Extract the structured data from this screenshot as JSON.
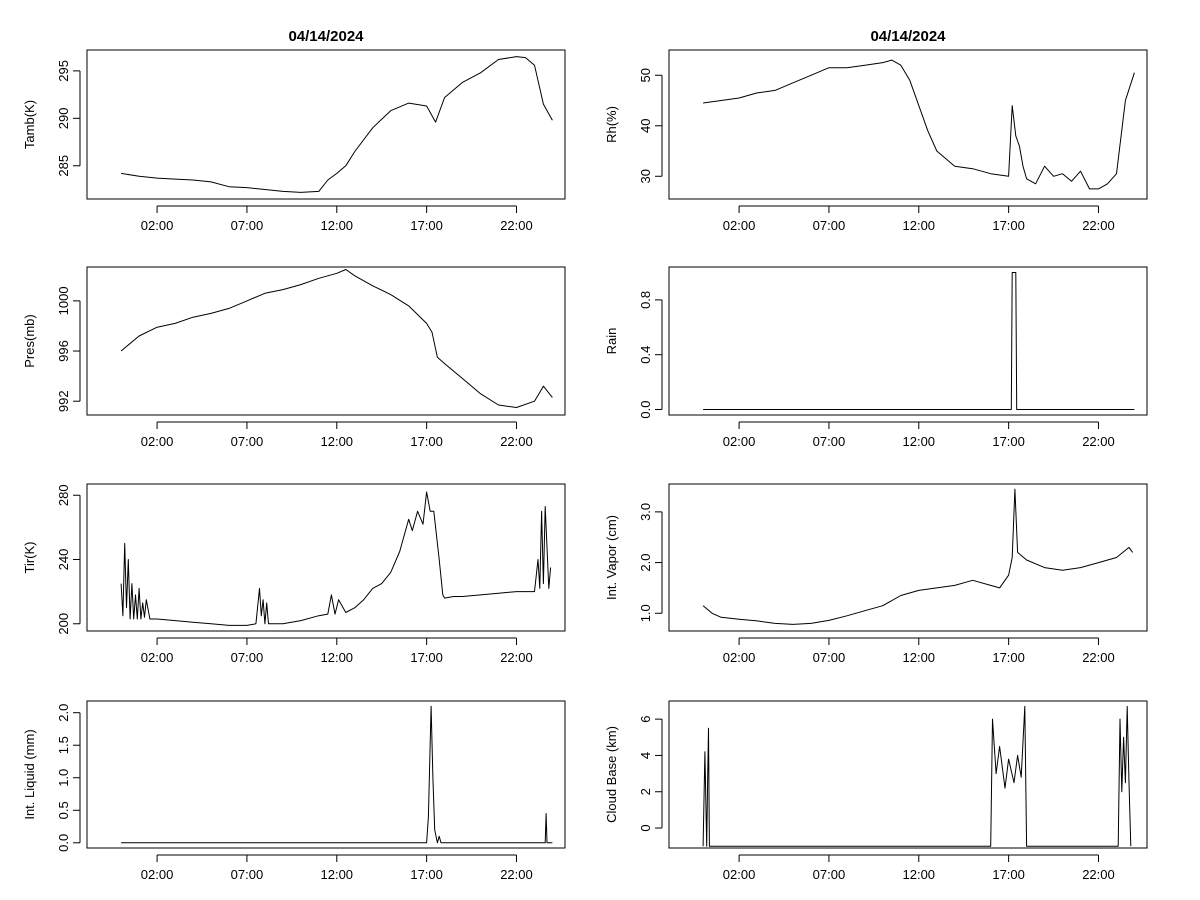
{
  "chart_data": [
    {
      "type": "line",
      "name": "tamb",
      "title": "04/14/2024",
      "xlabel": "",
      "ylabel": "Tamb(K)",
      "xlim": [
        -1.9,
        24.7
      ],
      "ylim": [
        281.5,
        297.2
      ],
      "xticks": [
        2,
        7,
        12,
        17,
        22
      ],
      "xtick_labels": [
        "02:00",
        "07:00",
        "12:00",
        "17:00",
        "22:00"
      ],
      "yticks": [
        285,
        290,
        295
      ],
      "ytick_labels": [
        "285",
        "290",
        "295"
      ],
      "x": [
        0,
        1,
        2,
        3,
        4,
        5,
        6,
        7,
        8,
        9,
        10,
        11,
        11.5,
        12,
        12.5,
        13,
        14,
        15,
        16,
        17,
        17.5,
        18,
        19,
        20,
        21,
        22,
        22.5,
        23,
        23.5,
        24
      ],
      "y": [
        284.2,
        283.9,
        283.7,
        283.6,
        283.5,
        283.3,
        282.8,
        282.7,
        282.5,
        282.3,
        282.2,
        282.3,
        283.5,
        284.2,
        285.0,
        286.5,
        289.0,
        290.8,
        291.6,
        291.3,
        289.6,
        292.2,
        293.8,
        294.8,
        296.2,
        296.5,
        296.4,
        295.6,
        291.5,
        289.8
      ]
    },
    {
      "type": "line",
      "name": "rh",
      "title": "04/14/2024",
      "xlabel": "",
      "ylabel": "Rh(%)",
      "xlim": [
        -1.9,
        24.7
      ],
      "ylim": [
        25.5,
        55
      ],
      "xticks": [
        2,
        7,
        12,
        17,
        22
      ],
      "xtick_labels": [
        "02:00",
        "07:00",
        "12:00",
        "17:00",
        "22:00"
      ],
      "yticks": [
        30,
        40,
        50
      ],
      "ytick_labels": [
        "30",
        "40",
        "50"
      ],
      "x": [
        0,
        1,
        2,
        3,
        4,
        5,
        6,
        7,
        8,
        9,
        10,
        10.5,
        11,
        11.5,
        12,
        12.5,
        13,
        14,
        15,
        16,
        17,
        17.2,
        17.4,
        17.6,
        17.8,
        18,
        18.5,
        19,
        19.5,
        20,
        20.5,
        21,
        21.5,
        22,
        22.5,
        23,
        23.5,
        24
      ],
      "y": [
        44.5,
        45.0,
        45.5,
        46.5,
        47.0,
        48.5,
        50.0,
        51.5,
        51.5,
        52.0,
        52.5,
        53.0,
        52.0,
        49.0,
        44.0,
        39.0,
        35.0,
        32.0,
        31.5,
        30.5,
        30.0,
        44.0,
        38.0,
        36.0,
        32.0,
        29.5,
        28.5,
        32.0,
        30.0,
        30.5,
        29.0,
        31.0,
        27.5,
        27.5,
        28.5,
        30.5,
        45.0,
        50.5
      ]
    },
    {
      "type": "line",
      "name": "pres",
      "title": "",
      "xlabel": "",
      "ylabel": "Pres(mb)",
      "xlim": [
        -1.9,
        24.7
      ],
      "ylim": [
        990.9,
        1002.7
      ],
      "xticks": [
        2,
        7,
        12,
        17,
        22
      ],
      "xtick_labels": [
        "02:00",
        "07:00",
        "12:00",
        "17:00",
        "22:00"
      ],
      "yticks": [
        992,
        996,
        1000
      ],
      "ytick_labels": [
        "992",
        "996",
        "1000"
      ],
      "x": [
        0,
        1,
        2,
        3,
        4,
        5,
        6,
        7,
        8,
        9,
        10,
        11,
        12,
        12.5,
        13,
        14,
        15,
        16,
        17,
        17.3,
        17.6,
        18,
        19,
        20,
        21,
        22,
        23,
        23.5,
        24
      ],
      "y": [
        996.0,
        997.2,
        997.9,
        998.2,
        998.7,
        999.0,
        999.4,
        1000.0,
        1000.6,
        1000.9,
        1001.3,
        1001.8,
        1002.2,
        1002.5,
        1002.0,
        1001.2,
        1000.5,
        999.6,
        998.2,
        997.5,
        995.5,
        995.0,
        993.8,
        992.6,
        991.7,
        991.5,
        992.0,
        993.2,
        992.3
      ]
    },
    {
      "type": "line",
      "name": "rain",
      "title": "",
      "xlabel": "",
      "ylabel": "Rain",
      "xlim": [
        -1.9,
        24.7
      ],
      "ylim": [
        -0.04,
        1.04
      ],
      "xticks": [
        2,
        7,
        12,
        17,
        22
      ],
      "xtick_labels": [
        "02:00",
        "07:00",
        "12:00",
        "17:00",
        "22:00"
      ],
      "yticks": [
        0.0,
        0.4,
        0.8
      ],
      "ytick_labels": [
        "0.0",
        "0.4",
        "0.8"
      ],
      "x": [
        0,
        17.15,
        17.2,
        17.4,
        17.45,
        24
      ],
      "y": [
        0,
        0,
        1,
        1,
        0,
        0
      ]
    },
    {
      "type": "line",
      "name": "tir",
      "title": "",
      "xlabel": "",
      "ylabel": "Tir(K)",
      "xlim": [
        -1.9,
        24.7
      ],
      "ylim": [
        195.5,
        287.0
      ],
      "xticks": [
        2,
        7,
        12,
        17,
        22
      ],
      "xtick_labels": [
        "02:00",
        "07:00",
        "12:00",
        "17:00",
        "22:00"
      ],
      "yticks": [
        200,
        240,
        280
      ],
      "ytick_labels": [
        "200",
        "240",
        "280"
      ],
      "x": [
        0,
        0.1,
        0.2,
        0.3,
        0.4,
        0.5,
        0.6,
        0.7,
        0.8,
        0.9,
        1.0,
        1.1,
        1.2,
        1.3,
        1.4,
        1.6,
        2,
        3,
        4,
        5,
        6,
        7,
        7.5,
        7.7,
        7.8,
        7.9,
        8.0,
        8.1,
        8.2,
        8.4,
        9,
        10,
        11,
        11.5,
        11.7,
        11.9,
        12.1,
        12.5,
        13,
        13.5,
        14,
        14.5,
        15,
        15.5,
        16,
        16.2,
        16.5,
        16.8,
        17,
        17.2,
        17.4,
        17.7,
        17.9,
        18.0,
        18.5,
        19,
        20,
        21,
        22,
        22.5,
        23,
        23.2,
        23.3,
        23.4,
        23.5,
        23.6,
        23.8,
        23.9
      ],
      "y": [
        225,
        205,
        250,
        210,
        240,
        203,
        225,
        203,
        218,
        203,
        222,
        203,
        213,
        204,
        215,
        203,
        203,
        202,
        201,
        200,
        199,
        199,
        200,
        222,
        205,
        215,
        200,
        213,
        200,
        200,
        200,
        202,
        205,
        206,
        218,
        206,
        215,
        207,
        210,
        215,
        222,
        225,
        232,
        245,
        265,
        258,
        270,
        262,
        282,
        270,
        270,
        240,
        218,
        216,
        217,
        217,
        218,
        219,
        220,
        220,
        220,
        240,
        222,
        270,
        225,
        273,
        222,
        235
      ]
    },
    {
      "type": "line",
      "name": "vapor",
      "title": "",
      "xlabel": "",
      "ylabel": "Int. Vapor (cm)",
      "xlim": [
        -1.9,
        24.7
      ],
      "ylim": [
        0.65,
        3.55
      ],
      "xticks": [
        2,
        7,
        12,
        17,
        22
      ],
      "xtick_labels": [
        "02:00",
        "07:00",
        "12:00",
        "17:00",
        "22:00"
      ],
      "yticks": [
        1.0,
        2.0,
        3.0
      ],
      "ytick_labels": [
        "1.0",
        "2.0",
        "3.0"
      ],
      "x": [
        0,
        0.5,
        1,
        2,
        3,
        4,
        5,
        6,
        7,
        8,
        9,
        10,
        11,
        12,
        13,
        14,
        15,
        16,
        16.5,
        17,
        17.2,
        17.35,
        17.5,
        18,
        19,
        20,
        21,
        22,
        23,
        23.7,
        23.9
      ],
      "y": [
        1.15,
        1.0,
        0.92,
        0.88,
        0.85,
        0.8,
        0.78,
        0.8,
        0.86,
        0.95,
        1.05,
        1.15,
        1.35,
        1.45,
        1.5,
        1.55,
        1.65,
        1.55,
        1.5,
        1.75,
        2.1,
        3.45,
        2.2,
        2.05,
        1.9,
        1.85,
        1.9,
        2.0,
        2.1,
        2.3,
        2.2
      ]
    },
    {
      "type": "line",
      "name": "liquid",
      "title": "",
      "xlabel": "",
      "ylabel": "Int. Liquid (mm)",
      "xlim": [
        -1.9,
        24.7
      ],
      "ylim": [
        -0.08,
        2.18
      ],
      "xticks": [
        2,
        7,
        12,
        17,
        22
      ],
      "xtick_labels": [
        "02:00",
        "07:00",
        "12:00",
        "17:00",
        "22:00"
      ],
      "yticks": [
        0.0,
        0.5,
        1.0,
        1.5,
        2.0
      ],
      "ytick_labels": [
        "0.0",
        "0.5",
        "1.0",
        "1.5",
        "2.0"
      ],
      "x": [
        0,
        17.0,
        17.1,
        17.25,
        17.35,
        17.45,
        17.6,
        17.7,
        17.8,
        23.6,
        23.65,
        23.7,
        24
      ],
      "y": [
        0,
        0,
        0.4,
        2.1,
        1.0,
        0.2,
        0,
        0.1,
        0,
        0,
        0.45,
        0,
        0
      ]
    },
    {
      "type": "line",
      "name": "cloudbase",
      "title": "",
      "xlabel": "",
      "ylabel": "Cloud Base (km)",
      "xlim": [
        -1.9,
        24.7
      ],
      "ylim": [
        -1.1,
        7.0
      ],
      "xticks": [
        2,
        7,
        12,
        17,
        22
      ],
      "xtick_labels": [
        "02:00",
        "07:00",
        "12:00",
        "17:00",
        "22:00"
      ],
      "yticks": [
        0,
        2,
        4,
        6
      ],
      "ytick_labels": [
        "0",
        "2",
        "4",
        "6"
      ],
      "x": [
        0,
        0.1,
        0.2,
        0.25,
        0.3,
        0.35,
        0.4,
        16,
        16.1,
        16.3,
        16.5,
        16.8,
        17.0,
        17.3,
        17.5,
        17.7,
        17.9,
        18.0,
        23.1,
        23.2,
        23.3,
        23.4,
        23.5,
        23.6,
        23.7,
        23.8
      ],
      "y": [
        -1,
        4.2,
        -1,
        2.5,
        5.5,
        -1,
        -1,
        -1,
        6.0,
        3.0,
        4.5,
        2.2,
        3.8,
        2.5,
        4.0,
        2.8,
        6.7,
        -1,
        -1,
        6.0,
        2.0,
        5.0,
        2.5,
        6.7,
        2.5,
        -1
      ]
    }
  ]
}
